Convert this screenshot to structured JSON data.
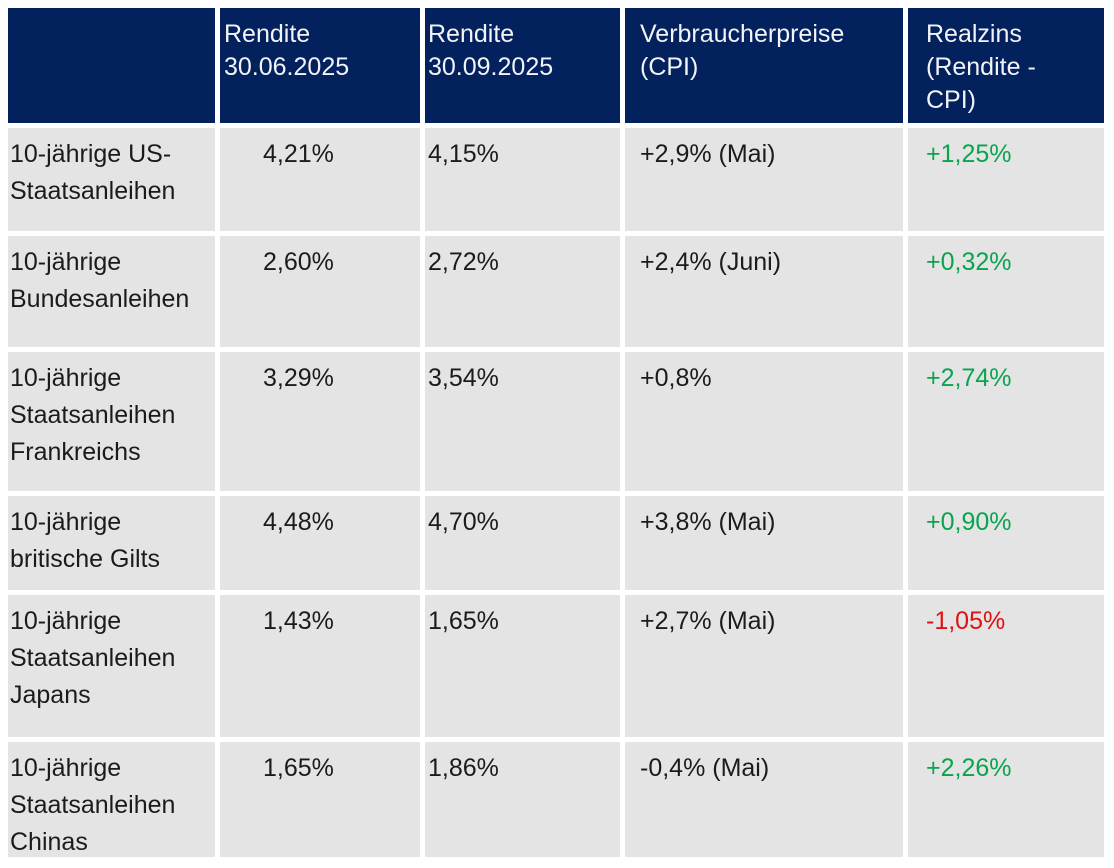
{
  "colors": {
    "header_bg": "#03215c",
    "header_text": "#f2f4f8",
    "row_bg": "#e4e4e4",
    "text": "#1b1b1b",
    "positive": "#09a44e",
    "negative": "#e01111"
  },
  "chart_data": {
    "type": "table",
    "columns": [
      "",
      "Rendite\n30.06.2025",
      "Rendite\n30.09.2025",
      "Verbraucherpreise\n(CPI)",
      "Realzins\n(Rendite -\nCPI)"
    ],
    "rows": [
      {
        "label": "10-jährige US-\nStaatsanleihen",
        "rendite_30_06_2025": "4,21%",
        "rendite_30_09_2025": "4,15%",
        "verbraucherpreise_cpi": "+2,9% (Mai)",
        "realzins": "+1,25%",
        "realzins_trend": "positive"
      },
      {
        "label": "10-jährige\nBundesanleihen",
        "rendite_30_06_2025": "2,60%",
        "rendite_30_09_2025": "2,72%",
        "verbraucherpreise_cpi": "+2,4% (Juni)",
        "realzins": "+0,32%",
        "realzins_trend": "positive"
      },
      {
        "label": "10-jährige\nStaatsanleihen\nFrankreichs",
        "rendite_30_06_2025": "3,29%",
        "rendite_30_09_2025": "3,54%",
        "verbraucherpreise_cpi": "+0,8%",
        "realzins": "+2,74%",
        "realzins_trend": "positive"
      },
      {
        "label": "10-jährige\nbritische Gilts",
        "rendite_30_06_2025": "4,48%",
        "rendite_30_09_2025": "4,70%",
        "verbraucherpreise_cpi": "+3,8% (Mai)",
        "realzins": "+0,90%",
        "realzins_trend": "positive"
      },
      {
        "label": "10-jährige\nStaatsanleihen\nJapans",
        "rendite_30_06_2025": "1,43%",
        "rendite_30_09_2025": "1,65%",
        "verbraucherpreise_cpi": "+2,7% (Mai)",
        "realzins": "-1,05%",
        "realzins_trend": "negative"
      },
      {
        "label": "10-jährige\nStaatsanleihen\nChinas",
        "rendite_30_06_2025": "1,65%",
        "rendite_30_09_2025": "1,86%",
        "verbraucherpreise_cpi": "-0,4% (Mai)",
        "realzins": "+2,26%",
        "realzins_trend": "positive"
      }
    ]
  }
}
